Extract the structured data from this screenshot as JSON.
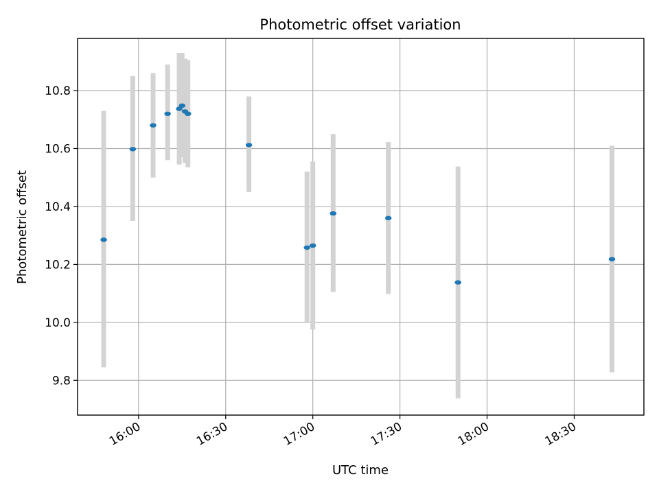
{
  "chart_data": {
    "type": "scatter",
    "title": "Photometric offset variation",
    "xlabel": "UTC time",
    "ylabel": "Photometric offset",
    "x_ticks": [
      "16:00",
      "16:30",
      "17:00",
      "17:30",
      "18:00",
      "18:30"
    ],
    "y_ticks": [
      "9.8",
      "10.0",
      "10.2",
      "10.4",
      "10.6",
      "10.8"
    ],
    "xlim": [
      "15:39",
      "18:54"
    ],
    "ylim": [
      9.68,
      10.98
    ],
    "grid": true,
    "error_bar_color": "#d3d3d3",
    "point_color": "#1f77b4",
    "points": [
      {
        "x": "15:48",
        "y": 10.285,
        "low": 9.845,
        "high": 10.73
      },
      {
        "x": "15:58",
        "y": 10.598,
        "low": 10.35,
        "high": 10.85
      },
      {
        "x": "16:05",
        "y": 10.68,
        "low": 10.5,
        "high": 10.86
      },
      {
        "x": "16:10",
        "y": 10.72,
        "low": 10.56,
        "high": 10.89
      },
      {
        "x": "16:14",
        "y": 10.737,
        "low": 10.545,
        "high": 10.93
      },
      {
        "x": "16:15",
        "y": 10.748,
        "low": 10.57,
        "high": 10.93
      },
      {
        "x": "16:16",
        "y": 10.728,
        "low": 10.55,
        "high": 10.91
      },
      {
        "x": "16:17",
        "y": 10.72,
        "low": 10.535,
        "high": 10.905
      },
      {
        "x": "16:38",
        "y": 10.612,
        "low": 10.45,
        "high": 10.78
      },
      {
        "x": "16:58",
        "y": 10.258,
        "low": 10.0,
        "high": 10.52
      },
      {
        "x": "17:00",
        "y": 10.265,
        "low": 9.975,
        "high": 10.555
      },
      {
        "x": "17:07",
        "y": 10.376,
        "low": 10.105,
        "high": 10.65
      },
      {
        "x": "17:26",
        "y": 10.36,
        "low": 10.098,
        "high": 10.622
      },
      {
        "x": "17:50",
        "y": 10.138,
        "low": 9.738,
        "high": 10.538
      },
      {
        "x": "18:43",
        "y": 10.218,
        "low": 9.828,
        "high": 10.61
      }
    ]
  }
}
